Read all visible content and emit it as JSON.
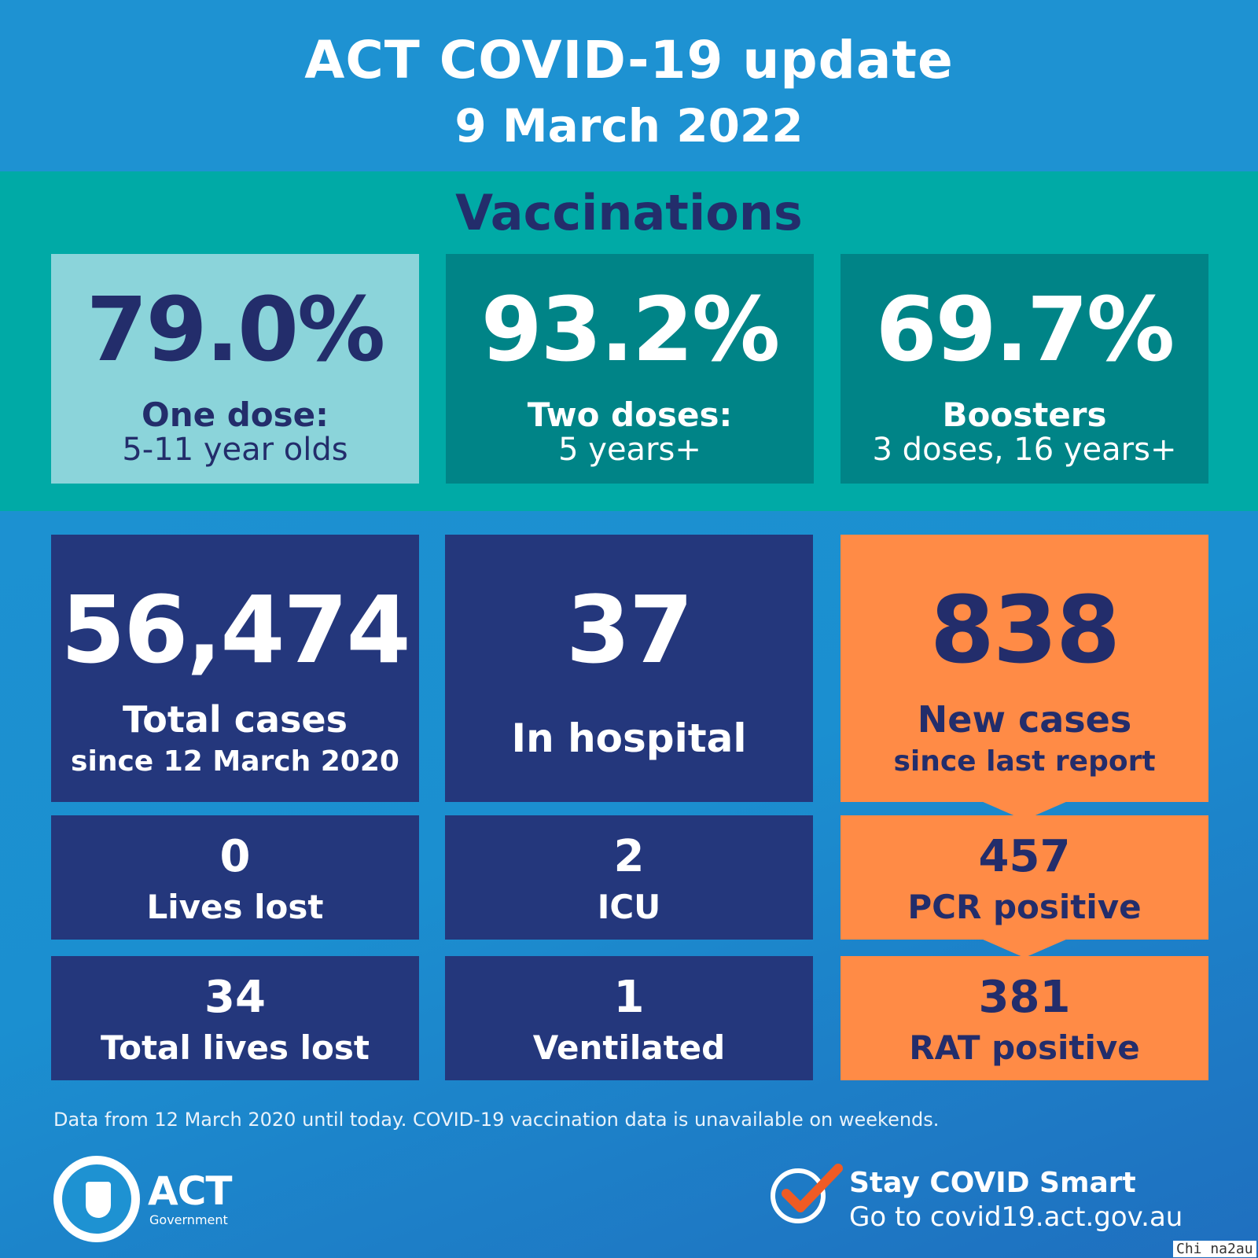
{
  "header": {
    "title": "ACT COVID-19 update",
    "date": "9 March 2022"
  },
  "vaccinations": {
    "heading": "Vaccinations",
    "tiles": [
      {
        "value": "79.0%",
        "label1": "One dose:",
        "label2": "5-11 year olds"
      },
      {
        "value": "93.2%",
        "label1": "Two doses:",
        "label2": "5 years+"
      },
      {
        "value": "69.7%",
        "label1": "Boosters",
        "label2": "3 doses, 16 years+"
      }
    ]
  },
  "cases": {
    "total": {
      "value": "56,474",
      "label1": "Total cases",
      "label2": "since 12 March 2020"
    },
    "hospital": {
      "value": "37",
      "label": "In hospital"
    },
    "new": {
      "value": "838",
      "label1": "New cases",
      "label2": "since last report"
    },
    "lives_lost": {
      "value": "0",
      "label": "Lives lost"
    },
    "icu": {
      "value": "2",
      "label": "ICU"
    },
    "pcr": {
      "value": "457",
      "label": "PCR positive"
    },
    "total_lives_lost": {
      "value": "34",
      "label": "Total lives lost"
    },
    "ventilated": {
      "value": "1",
      "label": "Ventilated"
    },
    "rat": {
      "value": "381",
      "label": "RAT positive"
    }
  },
  "footnote": "Data from 12 March 2020 until today.  COVID-19 vaccination data is unavailable on weekends.",
  "logo": {
    "name": "ACT",
    "sub": "Government"
  },
  "campaign": {
    "line1": "Stay COVID Smart",
    "line2": "Go to covid19.act.gov.au"
  },
  "watermark": "Chi na2au",
  "colors": {
    "header_blue": "#1e92d2",
    "teal": "#00aaa6",
    "dark_teal": "#008487",
    "light_teal": "#8bd4da",
    "navy": "#24377c",
    "orange": "#ff8b46",
    "check_orange": "#ef5b24"
  },
  "icons": [
    "act-crest-icon",
    "checkmark-icon"
  ]
}
